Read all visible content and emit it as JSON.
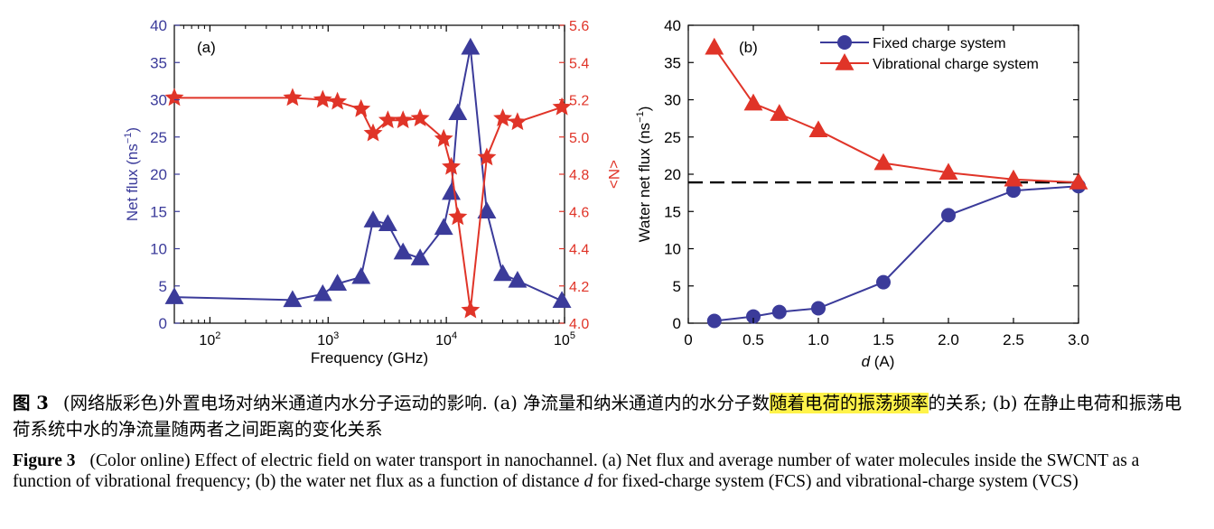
{
  "chart_data": [
    {
      "panel": "(a)",
      "type": "line",
      "xlabel": "Frequency (GHz)",
      "ylabel_left": "Net flux (ns",
      "ylabel_left_sup": "−1",
      "ylabel_left_end": ")",
      "ylabel_right": "<N>",
      "x_scale": "log",
      "xlim": [
        50,
        100000
      ],
      "ylim_left": [
        0,
        40
      ],
      "ylim_right": [
        4.0,
        5.6
      ],
      "x_ticks": [
        {
          "v": 100,
          "base": "10",
          "exp": "2"
        },
        {
          "v": 1000,
          "base": "10",
          "exp": "3"
        },
        {
          "v": 10000,
          "base": "10",
          "exp": "4"
        },
        {
          "v": 100000,
          "base": "10",
          "exp": "5"
        }
      ],
      "y_ticks_left": [
        "0",
        "5",
        "10",
        "15",
        "20",
        "25",
        "30",
        "35",
        "40"
      ],
      "y_ticks_right": [
        "4.0",
        "4.2",
        "4.4",
        "4.6",
        "4.8",
        "5.0",
        "5.2",
        "5.4",
        "5.6"
      ],
      "series": [
        {
          "axis": "left",
          "color": "#3b3b9a",
          "marker": "triangle",
          "points": [
            [
              50,
              3.5
            ],
            [
              500,
              3.1
            ],
            [
              900,
              3.9
            ],
            [
              1200,
              5.3
            ],
            [
              1900,
              6.2
            ],
            [
              2400,
              13.8
            ],
            [
              3200,
              13.3
            ],
            [
              4300,
              9.5
            ],
            [
              6000,
              8.7
            ],
            [
              9500,
              12.8
            ],
            [
              11000,
              17.5
            ],
            [
              12500,
              28.2
            ],
            [
              16000,
              37.0
            ],
            [
              22000,
              15.0
            ],
            [
              30000,
              6.6
            ],
            [
              40000,
              5.7
            ],
            [
              95000,
              3.0
            ]
          ]
        },
        {
          "axis": "right",
          "color": "#e03428",
          "marker": "star",
          "points": [
            [
              50,
              5.21
            ],
            [
              500,
              5.21
            ],
            [
              900,
              5.2
            ],
            [
              1200,
              5.19
            ],
            [
              1900,
              5.15
            ],
            [
              2400,
              5.02
            ],
            [
              3200,
              5.09
            ],
            [
              4300,
              5.09
            ],
            [
              6000,
              5.1
            ],
            [
              9500,
              4.99
            ],
            [
              11000,
              4.84
            ],
            [
              12500,
              4.57
            ],
            [
              16000,
              4.07
            ],
            [
              22000,
              4.89
            ],
            [
              30000,
              5.1
            ],
            [
              40000,
              5.08
            ],
            [
              95000,
              5.16
            ]
          ]
        }
      ]
    },
    {
      "panel": "(b)",
      "type": "line",
      "xlabel_italic": "d",
      "xlabel_rest": " (A)",
      "ylabel": "Water net flux (ns",
      "ylabel_sup": "−1",
      "ylabel_end": ")",
      "xlim": [
        0,
        3.0
      ],
      "ylim": [
        0,
        40
      ],
      "x_ticks": [
        "0",
        "0.5",
        "1.0",
        "1.5",
        "2.0",
        "2.5",
        "3.0"
      ],
      "y_ticks": [
        "0",
        "5",
        "10",
        "15",
        "20",
        "25",
        "30",
        "35",
        "40"
      ],
      "reference_line_y": 18.9,
      "legend_position": "top-right",
      "series": [
        {
          "name": "Fixed charge system",
          "color": "#3b3b9a",
          "marker": "circle",
          "points": [
            [
              0.2,
              0.3
            ],
            [
              0.5,
              0.9
            ],
            [
              0.7,
              1.5
            ],
            [
              1.0,
              2.0
            ],
            [
              1.5,
              5.5
            ],
            [
              2.0,
              14.5
            ],
            [
              2.5,
              17.8
            ],
            [
              3.0,
              18.4
            ]
          ]
        },
        {
          "name": "Vibrational charge system",
          "color": "#e03428",
          "marker": "triangle",
          "points": [
            [
              0.2,
              37.0
            ],
            [
              0.5,
              29.5
            ],
            [
              0.7,
              28.1
            ],
            [
              1.0,
              25.9
            ],
            [
              1.5,
              21.5
            ],
            [
              2.0,
              20.2
            ],
            [
              2.5,
              19.3
            ],
            [
              3.0,
              18.9
            ]
          ]
        }
      ]
    }
  ],
  "caption": {
    "cn_label": "图 3",
    "cn_part1": "(网络版彩色)外置电场对纳米通道内水分子运动的影响. (a) 净流量和纳米通道内的水分子数",
    "cn_highlight": "随着电荷的振荡频率",
    "cn_part2": "的关系; (b) 在静止电荷和振荡电荷系统中水的净流量随两者之间距离的变化关系",
    "en_label": "Figure 3",
    "en_part1": "(Color online) Effect of electric field on water transport in nanochannel. (a) Net flux and average number of water molecules inside the SWCNT as a function of vibrational frequency; (b) the water net flux as a function of distance ",
    "en_italic": "d",
    "en_part2": " for fixed-charge system (FCS) and vibrational-charge system (VCS)"
  }
}
